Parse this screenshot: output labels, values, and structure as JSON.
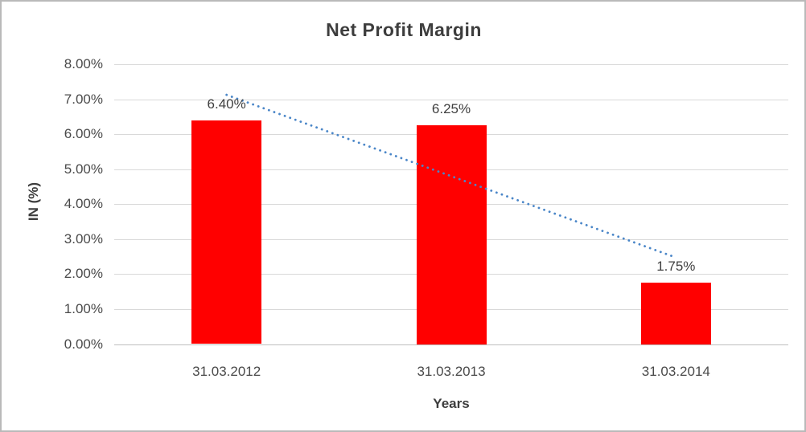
{
  "chart_data": {
    "type": "bar",
    "title": "Net Profit Margin",
    "xlabel": "Years",
    "ylabel": "IN (%)",
    "categories": [
      "31.03.2012",
      "31.03.2013",
      "31.03.2014"
    ],
    "values": [
      6.4,
      6.25,
      1.75
    ],
    "data_labels": [
      "6.40%",
      "6.25%",
      "1.75%"
    ],
    "y_ticks": [
      "0.00%",
      "1.00%",
      "2.00%",
      "3.00%",
      "4.00%",
      "5.00%",
      "6.00%",
      "7.00%",
      "8.00%"
    ],
    "ylim": [
      0,
      8
    ],
    "grid": true,
    "legend": false,
    "colors": {
      "bar": "#ff0000",
      "gridline": "#d9d9d9",
      "axis_line": "#bfbfbf",
      "text": "#3f3f3f",
      "trendline": "#4a86c8"
    },
    "trendline": {
      "type": "linear",
      "style": "dotted",
      "color": "#4a86c8",
      "start_category_index": 0,
      "end_category_index": 2,
      "start_value": 7.125,
      "end_value": 2.475
    }
  }
}
